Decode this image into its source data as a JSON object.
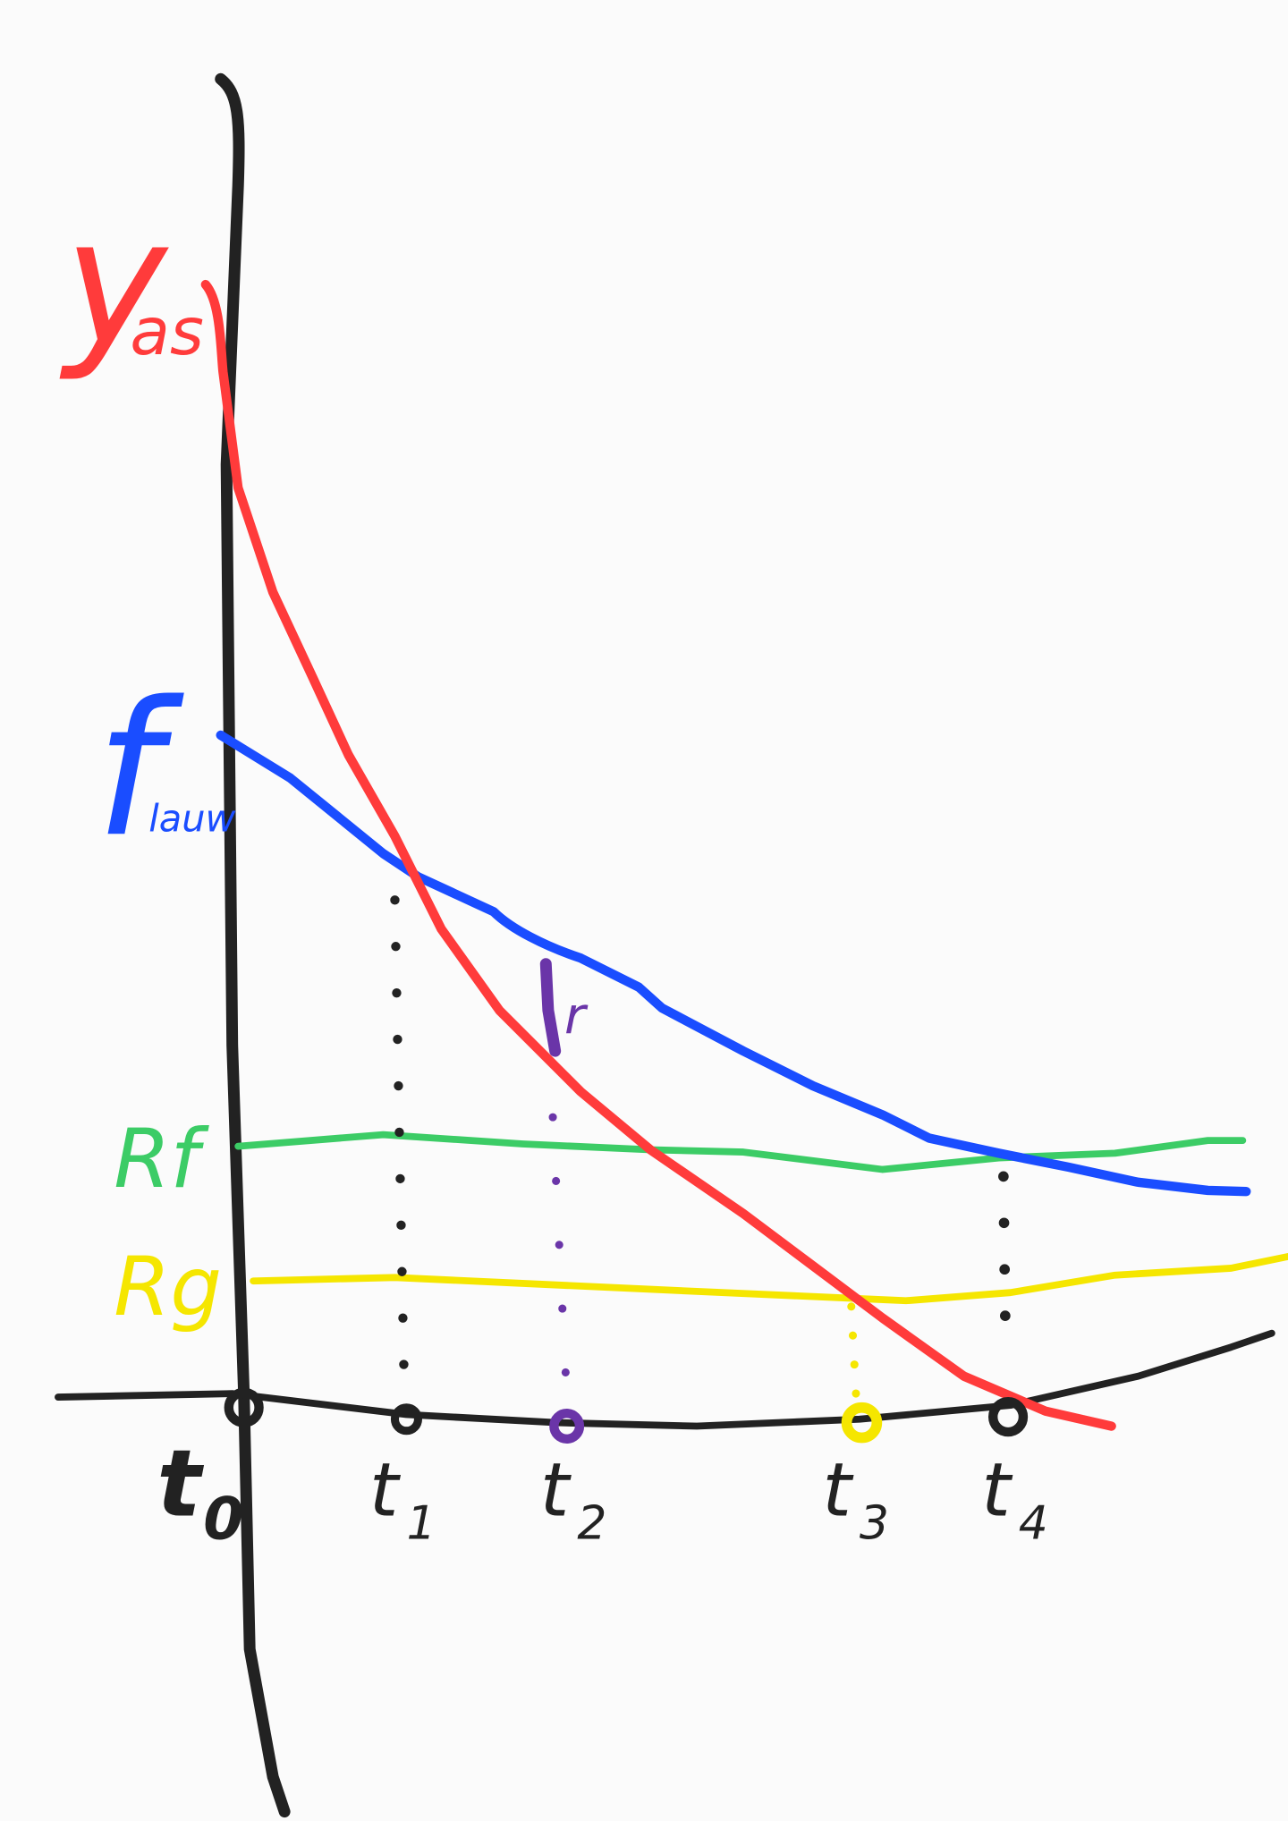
{
  "labels": {
    "y_axis": {
      "main": "y",
      "sub": "as"
    },
    "blue_curve": {
      "main": "f",
      "sub": "lauw"
    },
    "green_line": "Rf",
    "yellow_line": "Rg",
    "purple_gap": "r",
    "times": [
      {
        "main": "t",
        "sub": "0"
      },
      {
        "main": "t",
        "sub": "1"
      },
      {
        "main": "t",
        "sub": "2"
      },
      {
        "main": "t",
        "sub": "3"
      },
      {
        "main": "t",
        "sub": "4"
      }
    ]
  }
}
